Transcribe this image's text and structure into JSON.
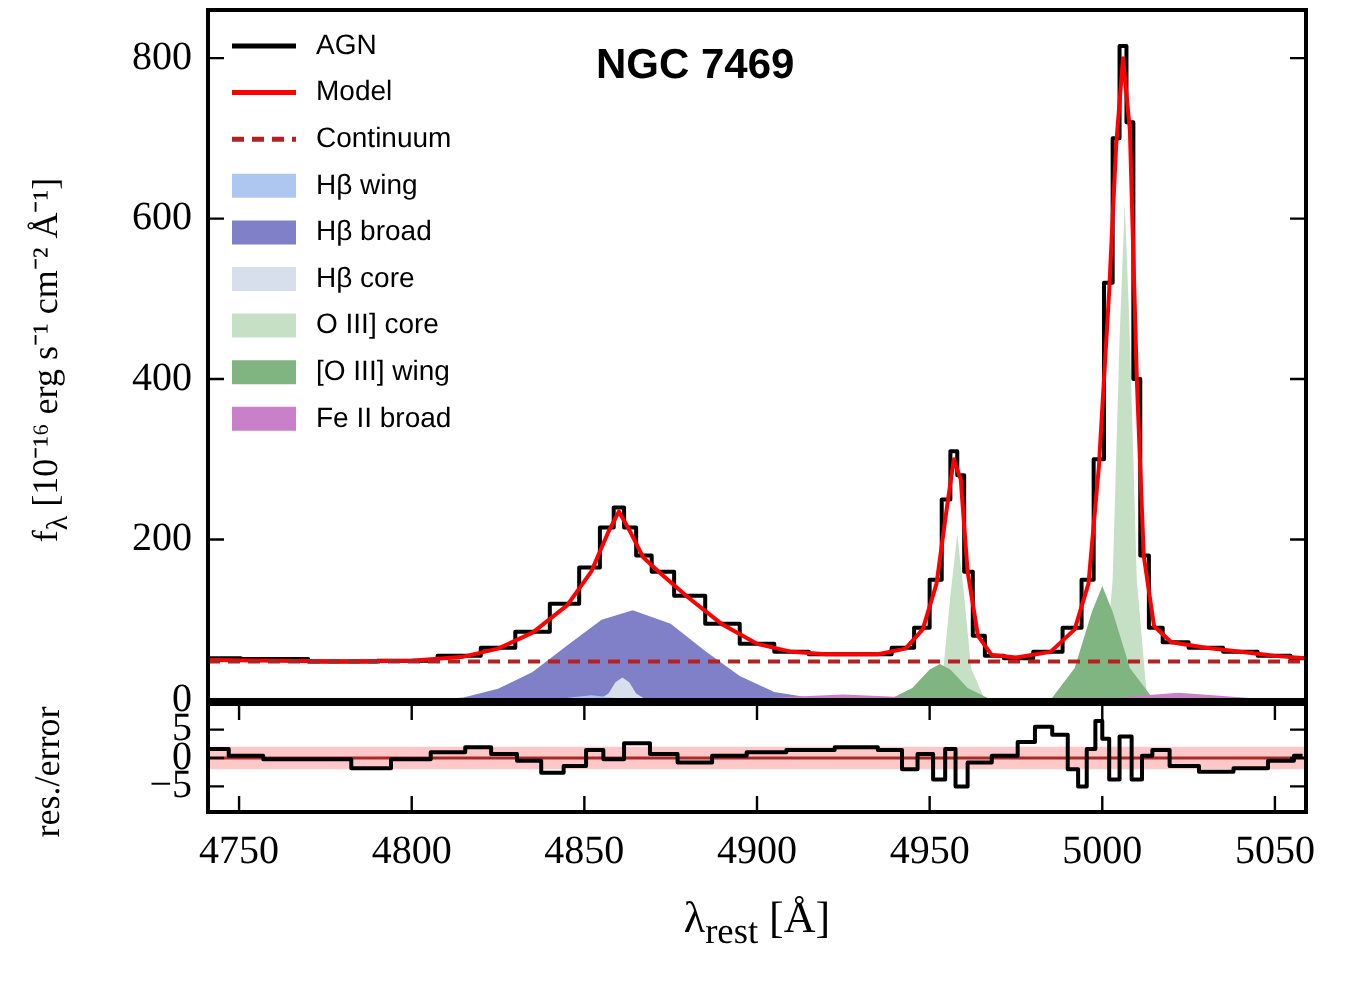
{
  "chart_data": [
    {
      "type": "line",
      "title": "NGC 7469",
      "ylabel": "f$_{λ}$ [10⁻¹⁶ erg s⁻¹ cm⁻² Å⁻¹]",
      "xlim": [
        4741,
        5059
      ],
      "ylim": [
        0,
        860
      ],
      "yticks": [
        0,
        200,
        400,
        600,
        800
      ],
      "tick_labels": "y",
      "grid": false,
      "legend": "top left",
      "marker": "none",
      "series": [
        {
          "name": "AGN",
          "type": "step",
          "color": "#000000",
          "x": [
            4741,
            4760,
            4780,
            4800,
            4815,
            4825,
            4835,
            4845,
            4852,
            4857,
            4860,
            4863,
            4867,
            4872,
            4880,
            4890,
            4900,
            4910,
            4920,
            4935,
            4943,
            4948,
            4952,
            4955,
            4957,
            4959,
            4961,
            4964,
            4968,
            4975,
            4985,
            4992,
            4996,
            4999,
            5002,
            5004,
            5006,
            5008,
            5010,
            5012,
            5015,
            5020,
            5030,
            5040,
            5050,
            5059
          ],
          "values": [
            52,
            51,
            48,
            49,
            55,
            65,
            85,
            120,
            165,
            215,
            240,
            215,
            180,
            160,
            130,
            95,
            70,
            60,
            57,
            57,
            65,
            90,
            150,
            250,
            310,
            280,
            160,
            80,
            55,
            52,
            60,
            90,
            150,
            300,
            520,
            700,
            815,
            720,
            400,
            180,
            90,
            72,
            65,
            60,
            55,
            52
          ]
        },
        {
          "name": "Model",
          "type": "line",
          "color": "#ff0000",
          "x": [
            4741,
            4760,
            4780,
            4800,
            4815,
            4825,
            4835,
            4845,
            4852,
            4857,
            4860,
            4863,
            4867,
            4872,
            4880,
            4890,
            4900,
            4910,
            4920,
            4935,
            4943,
            4948,
            4952,
            4955,
            4957,
            4959,
            4961,
            4964,
            4968,
            4975,
            4985,
            4992,
            4996,
            4999,
            5002,
            5004,
            5006,
            5008,
            5010,
            5012,
            5015,
            5020,
            5030,
            5040,
            5050,
            5059
          ],
          "values": [
            50,
            49,
            48,
            49,
            54,
            64,
            84,
            118,
            160,
            210,
            235,
            212,
            178,
            158,
            128,
            94,
            70,
            60,
            57,
            57,
            64,
            88,
            145,
            240,
            300,
            275,
            160,
            80,
            56,
            53,
            60,
            88,
            145,
            290,
            510,
            690,
            800,
            710,
            400,
            180,
            92,
            72,
            65,
            60,
            55,
            52
          ]
        },
        {
          "name": "Continuum",
          "type": "line",
          "line_style": "dashed",
          "color": "#b22222",
          "x": [
            4741,
            5059
          ],
          "values": [
            48,
            48
          ]
        },
        {
          "name": "Hβ wing",
          "type": "area",
          "color": "#aec7f0",
          "x": [
            4840,
            4846,
            4852,
            4858,
            4864
          ],
          "values": [
            0,
            3,
            6,
            3,
            0
          ]
        },
        {
          "name": "Hβ broad",
          "type": "area",
          "color": "#8080c8",
          "x": [
            4805,
            4815,
            4825,
            4835,
            4845,
            4855,
            4864,
            4875,
            4885,
            4895,
            4905,
            4915,
            4925
          ],
          "values": [
            0,
            3,
            14,
            35,
            68,
            100,
            112,
            95,
            61,
            30,
            10,
            3,
            0
          ]
        },
        {
          "name": "Hβ core",
          "type": "area",
          "color": "#d6dfeb",
          "x": [
            4854,
            4857,
            4859,
            4861,
            4863,
            4865,
            4868
          ],
          "values": [
            0,
            8,
            22,
            28,
            22,
            8,
            0
          ]
        },
        {
          "name": "O III] core",
          "type": "area",
          "color": "#c6e0c6",
          "x": [
            4950,
            4954,
            4956,
            4958,
            4960,
            4962,
            4966,
            5000,
            5003,
            5005,
            5006.5,
            5008,
            5010,
            5013
          ],
          "values": [
            0,
            40,
            130,
            207,
            130,
            40,
            0,
            0,
            150,
            450,
            620,
            450,
            150,
            0
          ]
        },
        {
          "name": "[O III] wing",
          "type": "area",
          "color": "#80b480",
          "x": [
            4938,
            4945,
            4950,
            4953,
            4956,
            4961,
            4968,
            4985,
            4992,
            4997,
            5000,
            5003,
            5008,
            5015
          ],
          "values": [
            0,
            15,
            38,
            45,
            38,
            15,
            0,
            0,
            40,
            110,
            142,
            110,
            40,
            0
          ]
        },
        {
          "name": "Fe II broad",
          "type": "area",
          "color": "#c880c8",
          "x": [
            4895,
            4910,
            4925,
            4940,
            4955,
            5000,
            5010,
            5022,
            5035,
            5050
          ],
          "values": [
            0,
            4,
            7,
            4,
            0,
            0,
            5,
            9,
            5,
            0
          ]
        }
      ]
    },
    {
      "type": "line",
      "xlabel": "λ$_{rest}$ [Å]",
      "ylabel": "res./error",
      "xlim": [
        4741,
        5059
      ],
      "xticks": [
        4750,
        4800,
        4850,
        4900,
        4950,
        5000,
        5050
      ],
      "ylim": [
        -9.5,
        9.5
      ],
      "yticks": [
        {
          "value": -5,
          "label": "−5"
        },
        0,
        5
      ],
      "grid": false,
      "legend": false,
      "marker": "none",
      "ref_lines": [
        {
          "axis": "y",
          "value": 0,
          "color": "#a52a2a"
        }
      ],
      "bands": [
        {
          "axis": "y",
          "from": -2,
          "to": 2,
          "color": "#ffc8c8"
        }
      ],
      "series": [
        {
          "type": "step",
          "color": "#000000",
          "x": [
            4741,
            4753,
            4761,
            4776,
            4789,
            4799,
            4812,
            4819,
            4827,
            4834,
            4841,
            4847,
            4854,
            4857,
            4866,
            4872,
            4882,
            4892,
            4902,
            4915,
            4930,
            4940,
            4944,
            4949,
            4953,
            4956,
            4959,
            4963,
            4973,
            4978,
            4983,
            4988,
            4992,
            4994,
            4997,
            4999,
            5001,
            5003,
            5007,
            5010,
            5013,
            5016,
            5023,
            5033,
            5043,
            5053,
            5058
          ],
          "values": [
            1.6,
            0.4,
            -0.2,
            -0.2,
            -1.8,
            -0.2,
            1.0,
            1.9,
            0.7,
            -0.5,
            -2.6,
            -1.4,
            1.4,
            -0.2,
            2.6,
            0.7,
            -0.8,
            0.4,
            1.0,
            1.4,
            1.9,
            1.4,
            -2.0,
            0.7,
            -3.8,
            1.6,
            -5.0,
            -0.8,
            0.4,
            2.8,
            5.5,
            4.1,
            -2.0,
            -5.0,
            1.6,
            6.5,
            3.4,
            -3.8,
            3.8,
            -3.8,
            0.4,
            1.4,
            -1.4,
            -2.4,
            -1.8,
            -0.5,
            0.4
          ]
        }
      ]
    }
  ]
}
